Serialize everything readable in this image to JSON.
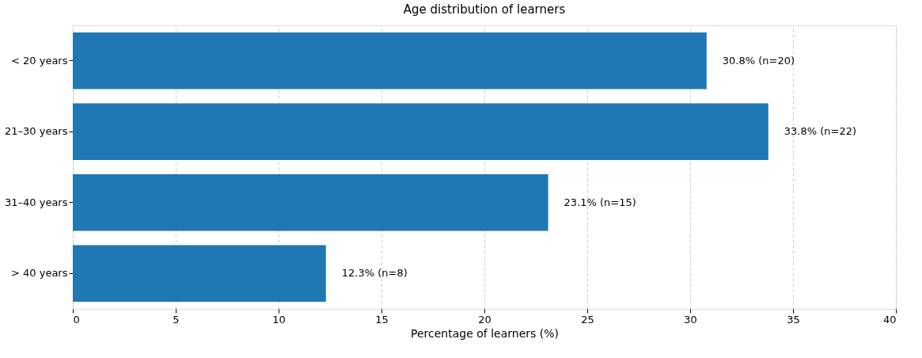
{
  "chart_data": {
    "type": "bar",
    "orientation": "horizontal",
    "title": "Age distribution of learners",
    "xlabel": "Percentage of learners (%)",
    "categories": [
      "< 20 years",
      "21–30 years",
      "31–40 years",
      "> 40 years"
    ],
    "values": [
      30.8,
      33.8,
      23.1,
      12.3
    ],
    "value_labels": [
      "30.8% (n=20)",
      "33.8% (n=22)",
      "23.1% (n=15)",
      "12.3% (n=8)"
    ],
    "color": "#1f77b4",
    "xlim": [
      0,
      40
    ],
    "xticks": [
      0,
      5,
      10,
      15,
      20,
      25,
      30,
      35,
      40
    ],
    "grid": "x"
  }
}
